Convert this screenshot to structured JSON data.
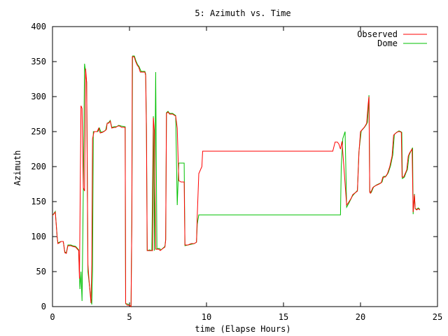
{
  "chart_data": {
    "type": "line",
    "title": "5: Azimuth vs. Time",
    "xlabel": "time (Elapse Hours)",
    "ylabel": "Azimuth",
    "xlim": [
      0,
      25
    ],
    "ylim": [
      0,
      400
    ],
    "xticks": [
      0,
      5,
      10,
      15,
      20,
      25
    ],
    "yticks": [
      0,
      50,
      100,
      150,
      200,
      250,
      300,
      350,
      400
    ],
    "grid": false,
    "legend_position": "top-right",
    "series": [
      {
        "name": "Observed",
        "color": "#ff0000",
        "points": [
          [
            0.0,
            130
          ],
          [
            0.18,
            135
          ],
          [
            0.3,
            100
          ],
          [
            0.35,
            90
          ],
          [
            0.45,
            91
          ],
          [
            0.55,
            93
          ],
          [
            0.7,
            93
          ],
          [
            0.8,
            77
          ],
          [
            0.9,
            76
          ],
          [
            1.0,
            87
          ],
          [
            1.2,
            87
          ],
          [
            1.3,
            86
          ],
          [
            1.5,
            85
          ],
          [
            1.7,
            80
          ],
          [
            1.75,
            40
          ],
          [
            1.85,
            287
          ],
          [
            1.92,
            283
          ],
          [
            2.0,
            170
          ],
          [
            2.08,
            165
          ],
          [
            2.15,
            340
          ],
          [
            2.22,
            320
          ],
          [
            2.3,
            60
          ],
          [
            2.4,
            30
          ],
          [
            2.5,
            5
          ],
          [
            2.55,
            60
          ],
          [
            2.6,
            240
          ],
          [
            2.7,
            250
          ],
          [
            2.8,
            250
          ],
          [
            2.9,
            250
          ],
          [
            3.0,
            255
          ],
          [
            3.1,
            248
          ],
          [
            3.25,
            249
          ],
          [
            3.4,
            251
          ],
          [
            3.5,
            253
          ],
          [
            3.55,
            262
          ],
          [
            3.65,
            262
          ],
          [
            3.75,
            265
          ],
          [
            3.85,
            255
          ],
          [
            4.0,
            256
          ],
          [
            4.1,
            256
          ],
          [
            4.25,
            258
          ],
          [
            4.35,
            258
          ],
          [
            4.5,
            256
          ],
          [
            4.72,
            256
          ],
          [
            4.75,
            5
          ],
          [
            4.85,
            2
          ],
          [
            5.0,
            2
          ],
          [
            5.1,
            0
          ],
          [
            5.15,
            120
          ],
          [
            5.18,
            357
          ],
          [
            5.3,
            357
          ],
          [
            5.4,
            350
          ],
          [
            5.5,
            345
          ],
          [
            5.6,
            342
          ],
          [
            5.7,
            335
          ],
          [
            5.8,
            335
          ],
          [
            6.0,
            335
          ],
          [
            6.05,
            330
          ],
          [
            6.1,
            250
          ],
          [
            6.15,
            80
          ],
          [
            6.3,
            80
          ],
          [
            6.5,
            80
          ],
          [
            6.55,
            270
          ],
          [
            6.62,
            250
          ],
          [
            6.7,
            82
          ],
          [
            6.8,
            82
          ],
          [
            6.9,
            82
          ],
          [
            7.0,
            80
          ],
          [
            7.1,
            82
          ],
          [
            7.3,
            85
          ],
          [
            7.35,
            95
          ],
          [
            7.4,
            276
          ],
          [
            7.5,
            278
          ],
          [
            7.6,
            275
          ],
          [
            7.8,
            275
          ],
          [
            8.0,
            272
          ],
          [
            8.1,
            255
          ],
          [
            8.2,
            180
          ],
          [
            8.35,
            178
          ],
          [
            8.45,
            178
          ],
          [
            8.55,
            178
          ],
          [
            8.6,
            88
          ],
          [
            8.8,
            88
          ],
          [
            9.0,
            90
          ],
          [
            9.2,
            90
          ],
          [
            9.35,
            92
          ],
          [
            9.4,
            130
          ],
          [
            9.5,
            190
          ],
          [
            9.7,
            200
          ],
          [
            9.75,
            222
          ],
          [
            10.0,
            222
          ],
          [
            12.0,
            222
          ],
          [
            15.0,
            222
          ],
          [
            18.2,
            222
          ],
          [
            18.35,
            235
          ],
          [
            18.5,
            235
          ],
          [
            18.6,
            232
          ],
          [
            18.7,
            225
          ],
          [
            18.8,
            236
          ],
          [
            19.1,
            145
          ],
          [
            19.2,
            148
          ],
          [
            19.4,
            155
          ],
          [
            19.5,
            160
          ],
          [
            19.8,
            165
          ],
          [
            19.9,
            220
          ],
          [
            20.0,
            250
          ],
          [
            20.2,
            255
          ],
          [
            20.3,
            258
          ],
          [
            20.4,
            262
          ],
          [
            20.5,
            290
          ],
          [
            20.55,
            300
          ],
          [
            20.6,
            163
          ],
          [
            20.65,
            162
          ],
          [
            20.8,
            170
          ],
          [
            21.0,
            173
          ],
          [
            21.2,
            175
          ],
          [
            21.35,
            177
          ],
          [
            21.45,
            185
          ],
          [
            21.6,
            185
          ],
          [
            21.75,
            190
          ],
          [
            21.9,
            200
          ],
          [
            22.05,
            215
          ],
          [
            22.15,
            245
          ],
          [
            22.3,
            248
          ],
          [
            22.45,
            250
          ],
          [
            22.55,
            250
          ],
          [
            22.65,
            249
          ],
          [
            22.7,
            185
          ],
          [
            22.8,
            185
          ],
          [
            22.9,
            190
          ],
          [
            23.0,
            195
          ],
          [
            23.1,
            215
          ],
          [
            23.2,
            220
          ],
          [
            23.35,
            225
          ],
          [
            23.42,
            135
          ],
          [
            23.5,
            160
          ],
          [
            23.55,
            140
          ],
          [
            23.65,
            138
          ],
          [
            23.75,
            140
          ],
          [
            23.85,
            138
          ]
        ]
      },
      {
        "name": "Dome",
        "color": "#00c000",
        "points": [
          [
            0.0,
            130
          ],
          [
            0.18,
            136
          ],
          [
            0.3,
            100
          ],
          [
            0.35,
            91
          ],
          [
            0.45,
            92
          ],
          [
            0.55,
            93
          ],
          [
            0.7,
            93
          ],
          [
            0.8,
            78
          ],
          [
            0.9,
            77
          ],
          [
            1.0,
            88
          ],
          [
            1.2,
            88
          ],
          [
            1.3,
            87
          ],
          [
            1.5,
            86
          ],
          [
            1.7,
            81
          ],
          [
            1.78,
            25
          ],
          [
            1.85,
            50
          ],
          [
            1.92,
            8
          ],
          [
            2.0,
            165
          ],
          [
            2.08,
            347
          ],
          [
            2.15,
            335
          ],
          [
            2.22,
            320
          ],
          [
            2.3,
            50
          ],
          [
            2.45,
            20
          ],
          [
            2.55,
            3
          ],
          [
            2.6,
            50
          ],
          [
            2.65,
            250
          ],
          [
            2.75,
            250
          ],
          [
            2.85,
            250
          ],
          [
            2.95,
            250
          ],
          [
            3.05,
            255
          ],
          [
            3.15,
            249
          ],
          [
            3.3,
            250
          ],
          [
            3.45,
            252
          ],
          [
            3.55,
            262
          ],
          [
            3.65,
            263
          ],
          [
            3.75,
            266
          ],
          [
            3.85,
            256
          ],
          [
            4.0,
            257
          ],
          [
            4.15,
            257
          ],
          [
            4.3,
            259
          ],
          [
            4.45,
            258
          ],
          [
            4.72,
            257
          ],
          [
            4.75,
            4
          ],
          [
            4.85,
            4
          ],
          [
            5.0,
            2
          ],
          [
            5.1,
            0
          ],
          [
            5.15,
            120
          ],
          [
            5.2,
            358
          ],
          [
            5.32,
            358
          ],
          [
            5.42,
            351
          ],
          [
            5.52,
            346
          ],
          [
            5.62,
            343
          ],
          [
            5.75,
            336
          ],
          [
            5.9,
            336
          ],
          [
            6.0,
            336
          ],
          [
            6.05,
            332
          ],
          [
            6.1,
            260
          ],
          [
            6.15,
            80
          ],
          [
            6.3,
            81
          ],
          [
            6.45,
            80
          ],
          [
            6.55,
            272
          ],
          [
            6.62,
            80
          ],
          [
            6.7,
            335
          ],
          [
            6.78,
            82
          ],
          [
            6.85,
            83
          ],
          [
            6.95,
            83
          ],
          [
            7.05,
            81
          ],
          [
            7.15,
            83
          ],
          [
            7.3,
            86
          ],
          [
            7.35,
            96
          ],
          [
            7.4,
            277
          ],
          [
            7.5,
            279
          ],
          [
            7.6,
            276
          ],
          [
            7.8,
            276
          ],
          [
            8.0,
            273
          ],
          [
            8.1,
            145
          ],
          [
            8.2,
            205
          ],
          [
            8.35,
            205
          ],
          [
            8.45,
            205
          ],
          [
            8.55,
            205
          ],
          [
            8.6,
            87
          ],
          [
            8.8,
            88
          ],
          [
            9.0,
            89
          ],
          [
            9.2,
            90
          ],
          [
            9.35,
            92
          ],
          [
            9.4,
            118
          ],
          [
            9.5,
            131
          ],
          [
            10.0,
            131
          ],
          [
            12.0,
            131
          ],
          [
            15.0,
            131
          ],
          [
            18.0,
            131
          ],
          [
            18.7,
            131
          ],
          [
            18.75,
            200
          ],
          [
            18.85,
            240
          ],
          [
            19.0,
            250
          ],
          [
            19.1,
            142
          ],
          [
            19.25,
            148
          ],
          [
            19.45,
            157
          ],
          [
            19.55,
            160
          ],
          [
            19.8,
            166
          ],
          [
            19.9,
            222
          ],
          [
            20.05,
            251
          ],
          [
            20.25,
            256
          ],
          [
            20.35,
            259
          ],
          [
            20.45,
            263
          ],
          [
            20.55,
            302
          ],
          [
            20.6,
            165
          ],
          [
            20.7,
            163
          ],
          [
            20.85,
            171
          ],
          [
            21.05,
            174
          ],
          [
            21.25,
            176
          ],
          [
            21.4,
            178
          ],
          [
            21.5,
            186
          ],
          [
            21.65,
            186
          ],
          [
            21.8,
            191
          ],
          [
            21.95,
            201
          ],
          [
            22.1,
            217
          ],
          [
            22.2,
            246
          ],
          [
            22.35,
            249
          ],
          [
            22.5,
            251
          ],
          [
            22.6,
            250
          ],
          [
            22.68,
            249
          ],
          [
            22.72,
            183
          ],
          [
            22.85,
            185
          ],
          [
            22.95,
            191
          ],
          [
            23.05,
            196
          ],
          [
            23.15,
            216
          ],
          [
            23.25,
            221
          ],
          [
            23.38,
            227
          ],
          [
            23.42,
            132
          ],
          [
            23.5,
            161
          ],
          [
            23.55,
            140
          ],
          [
            23.65,
            139
          ],
          [
            23.75,
            141
          ],
          [
            23.85,
            139
          ]
        ]
      }
    ]
  }
}
